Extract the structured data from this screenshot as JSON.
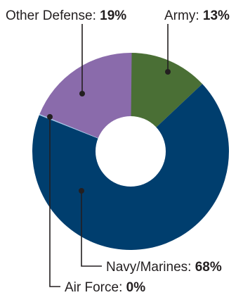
{
  "chart_data": {
    "type": "pie",
    "variant": "donut",
    "categories": [
      "Army",
      "Navy/Marines",
      "Air Force",
      "Other Defense"
    ],
    "values": [
      13,
      68,
      0,
      19
    ],
    "value_labels": [
      "13%",
      "68%",
      "0%",
      "19%"
    ],
    "colors": [
      "#4a6f35",
      "#003e6e",
      "#9dc3e6",
      "#8a6bab"
    ],
    "legend": "none",
    "label_placement": "callouts"
  }
}
